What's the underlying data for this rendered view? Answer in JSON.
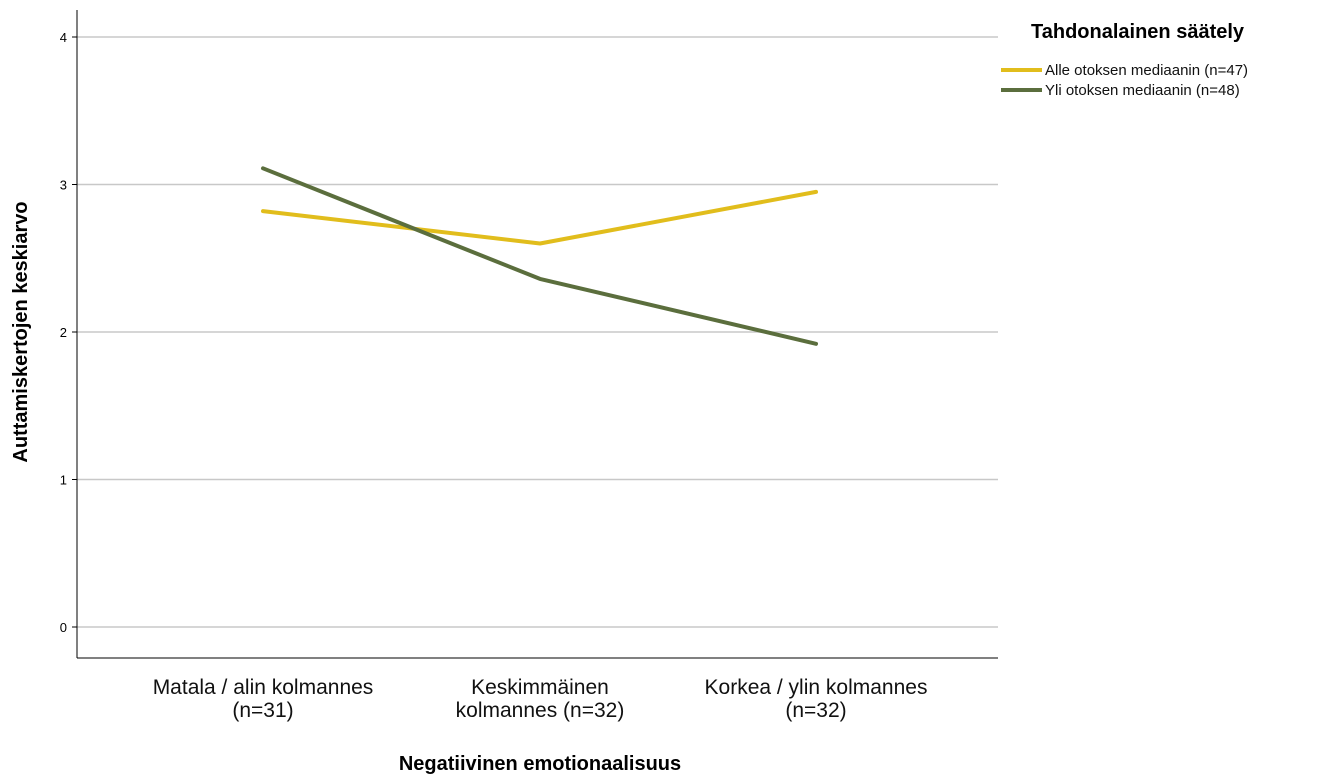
{
  "chart_data": {
    "type": "line",
    "title": "",
    "xlabel": "Negatiivinen emotionaalisuus",
    "ylabel": "Auttamiskertojen keskiarvo",
    "ylim": [
      0,
      4
    ],
    "yticks": [
      "0",
      "1",
      "2",
      "3",
      "4"
    ],
    "grid": true,
    "categories": [
      [
        "Matala / alin kolmannes",
        "(n=31)"
      ],
      [
        "Keskimmäinen",
        "kolmannes (n=32)"
      ],
      [
        "Korkea / ylin kolmannes",
        "(n=32)"
      ]
    ],
    "legend": {
      "title": "Tahdonalainen säätely",
      "position": "top-right"
    },
    "series": [
      {
        "name": "Alle otoksen mediaanin (n=47)",
        "color": "#e1bd1c",
        "values": [
          2.82,
          2.6,
          2.95
        ]
      },
      {
        "name": "Yli otoksen mediaanin (n=48)",
        "color": "#5b6e3d",
        "values": [
          3.11,
          2.36,
          1.92
        ]
      }
    ]
  }
}
